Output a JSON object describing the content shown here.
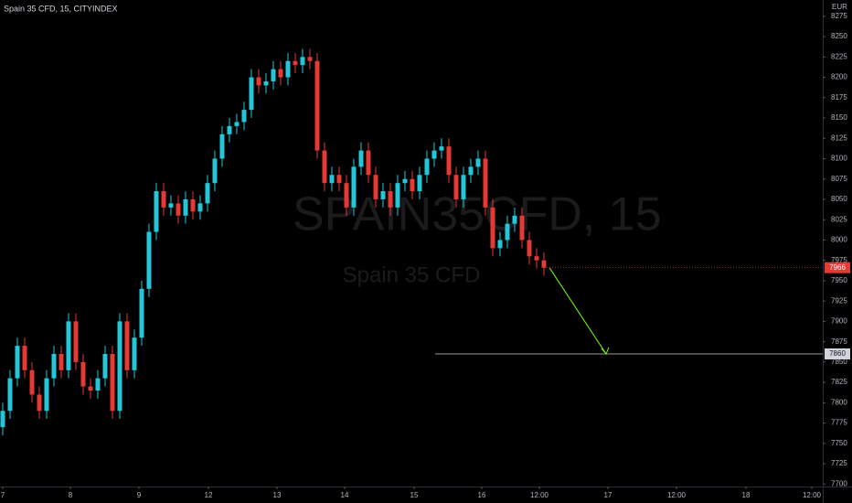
{
  "chart_data": {
    "type": "candlestick",
    "title": "Spain 35 CFD, 15, CITYINDEX",
    "watermark": "SPAIN35CFD, 15",
    "watermark_subtitle": "Spain 35 CFD",
    "currency": "EUR",
    "up_color": "#26c6da",
    "down_color": "#e53935",
    "grid": false,
    "open": [
      7770,
      7790,
      7830,
      7870,
      7840,
      7810,
      7790,
      7830,
      7860,
      7840,
      7900,
      7850,
      7820,
      7815,
      7830,
      7860,
      7790,
      7900,
      7840,
      7880,
      7940,
      8010,
      8060,
      8040,
      8045,
      8030,
      8050,
      8035,
      8045,
      8070,
      8100,
      8130,
      8140,
      8145,
      8160,
      8200,
      8190,
      8195,
      8210,
      8200,
      8220,
      8215,
      8225,
      8220,
      8110,
      8070,
      8080,
      8070,
      8040,
      8090,
      8110,
      8080,
      8050,
      8060,
      8040,
      8070,
      8075,
      8060,
      8080,
      8100,
      8110,
      8115,
      8080,
      8050,
      8080,
      8090,
      8100,
      8040,
      7990,
      8000,
      8020,
      8030,
      8000,
      7980,
      7975
    ],
    "high": [
      7800,
      7840,
      7880,
      7880,
      7850,
      7820,
      7840,
      7870,
      7870,
      7910,
      7910,
      7860,
      7830,
      7840,
      7870,
      7870,
      7910,
      7910,
      7890,
      7950,
      8020,
      8070,
      8070,
      8055,
      8055,
      8060,
      8060,
      8055,
      8080,
      8110,
      8140,
      8150,
      8155,
      8170,
      8210,
      8210,
      8205,
      8220,
      8220,
      8230,
      8230,
      8235,
      8235,
      8230,
      8120,
      8090,
      8090,
      8080,
      8100,
      8120,
      8120,
      8090,
      8070,
      8070,
      8080,
      8085,
      8085,
      8090,
      8110,
      8120,
      8125,
      8125,
      8090,
      8090,
      8100,
      8110,
      8110,
      8050,
      8010,
      8030,
      8040,
      8040,
      8010,
      7990,
      7985
    ],
    "low": [
      7760,
      7780,
      7820,
      7830,
      7800,
      7780,
      7780,
      7820,
      7830,
      7830,
      7840,
      7810,
      7805,
      7805,
      7820,
      7780,
      7780,
      7830,
      7830,
      7870,
      7930,
      8000,
      8030,
      8030,
      8020,
      8020,
      8025,
      8025,
      8035,
      8060,
      8090,
      8120,
      8130,
      8135,
      8150,
      8180,
      8180,
      8185,
      8190,
      8190,
      8205,
      8205,
      8210,
      8100,
      8060,
      8060,
      8060,
      8030,
      8030,
      8080,
      8070,
      8040,
      8040,
      8030,
      8030,
      8060,
      8050,
      8050,
      8070,
      8090,
      8100,
      8070,
      8040,
      8040,
      8070,
      8080,
      8030,
      7980,
      7980,
      7990,
      8010,
      7990,
      7970,
      7965,
      7956
    ],
    "close": [
      7790,
      7830,
      7870,
      7840,
      7810,
      7790,
      7830,
      7860,
      7840,
      7900,
      7850,
      7820,
      7815,
      7830,
      7860,
      7790,
      7900,
      7840,
      7880,
      7940,
      8010,
      8060,
      8040,
      8045,
      8030,
      8050,
      8035,
      8045,
      8070,
      8100,
      8130,
      8140,
      8145,
      8160,
      8200,
      8190,
      8195,
      8210,
      8200,
      8220,
      8215,
      8225,
      8220,
      8110,
      8070,
      8080,
      8070,
      8040,
      8090,
      8110,
      8080,
      8050,
      8060,
      8040,
      8070,
      8075,
      8060,
      8080,
      8100,
      8110,
      8115,
      8080,
      8050,
      8080,
      8090,
      8100,
      8040,
      7990,
      8000,
      8020,
      8030,
      8000,
      7980,
      7975,
      7966
    ],
    "target": 7860,
    "ylim": [
      7697,
      8295
    ],
    "yticks": [
      7700,
      7725,
      7750,
      7775,
      7800,
      7825,
      7850,
      7875,
      7900,
      7925,
      7950,
      7975,
      8000,
      8025,
      8050,
      8075,
      8100,
      8125,
      8150,
      8175,
      8200,
      8225,
      8250,
      8275
    ],
    "xlim": [
      -0.375,
      112.125
    ],
    "xticks": [
      {
        "value": 0,
        "label": "7"
      },
      {
        "value": 9.25,
        "label": "8"
      },
      {
        "value": 18.625,
        "label": "9"
      },
      {
        "value": 28.125,
        "label": "12"
      },
      {
        "value": 37.5,
        "label": "13"
      },
      {
        "value": 46.75,
        "label": "14"
      },
      {
        "value": 56.25,
        "label": "15"
      },
      {
        "value": 65.5,
        "label": "16"
      },
      {
        "value": 73.375,
        "label": "12:00"
      },
      {
        "value": 82.75,
        "label": "17"
      },
      {
        "value": 92.125,
        "label": "12:00"
      },
      {
        "value": 101.625,
        "label": "18"
      },
      {
        "value": 110.625,
        "label": "12:00"
      }
    ]
  }
}
